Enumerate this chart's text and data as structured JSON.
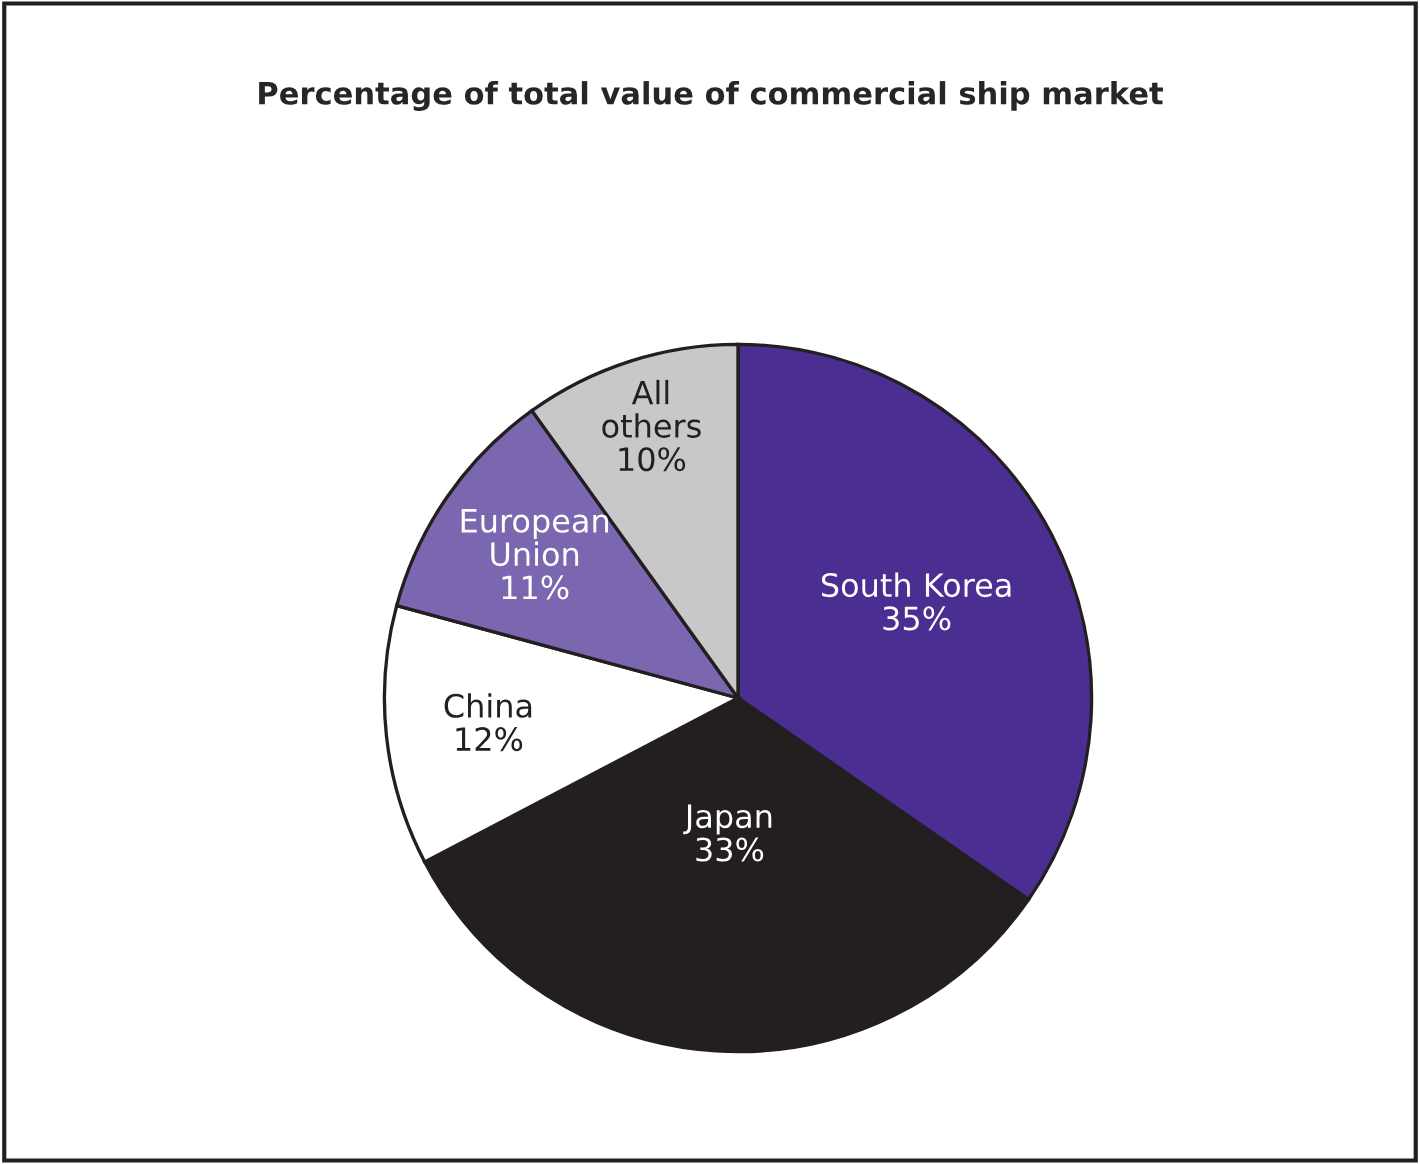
{
  "chart_data": {
    "type": "pie",
    "title": "Percentage of total value of commercial ship market",
    "categories": [
      "South Korea",
      "Japan",
      "China",
      "European\nUnion",
      "All\nothers"
    ],
    "values": [
      35,
      33,
      12,
      11,
      10
    ],
    "value_labels": [
      "35%",
      "33%",
      "12%",
      "11%",
      "10%"
    ],
    "colors": [
      "#4b2e91",
      "#231f20",
      "#ffffff",
      "#7b67b0",
      "#c8c8ca"
    ],
    "legend": false
  }
}
